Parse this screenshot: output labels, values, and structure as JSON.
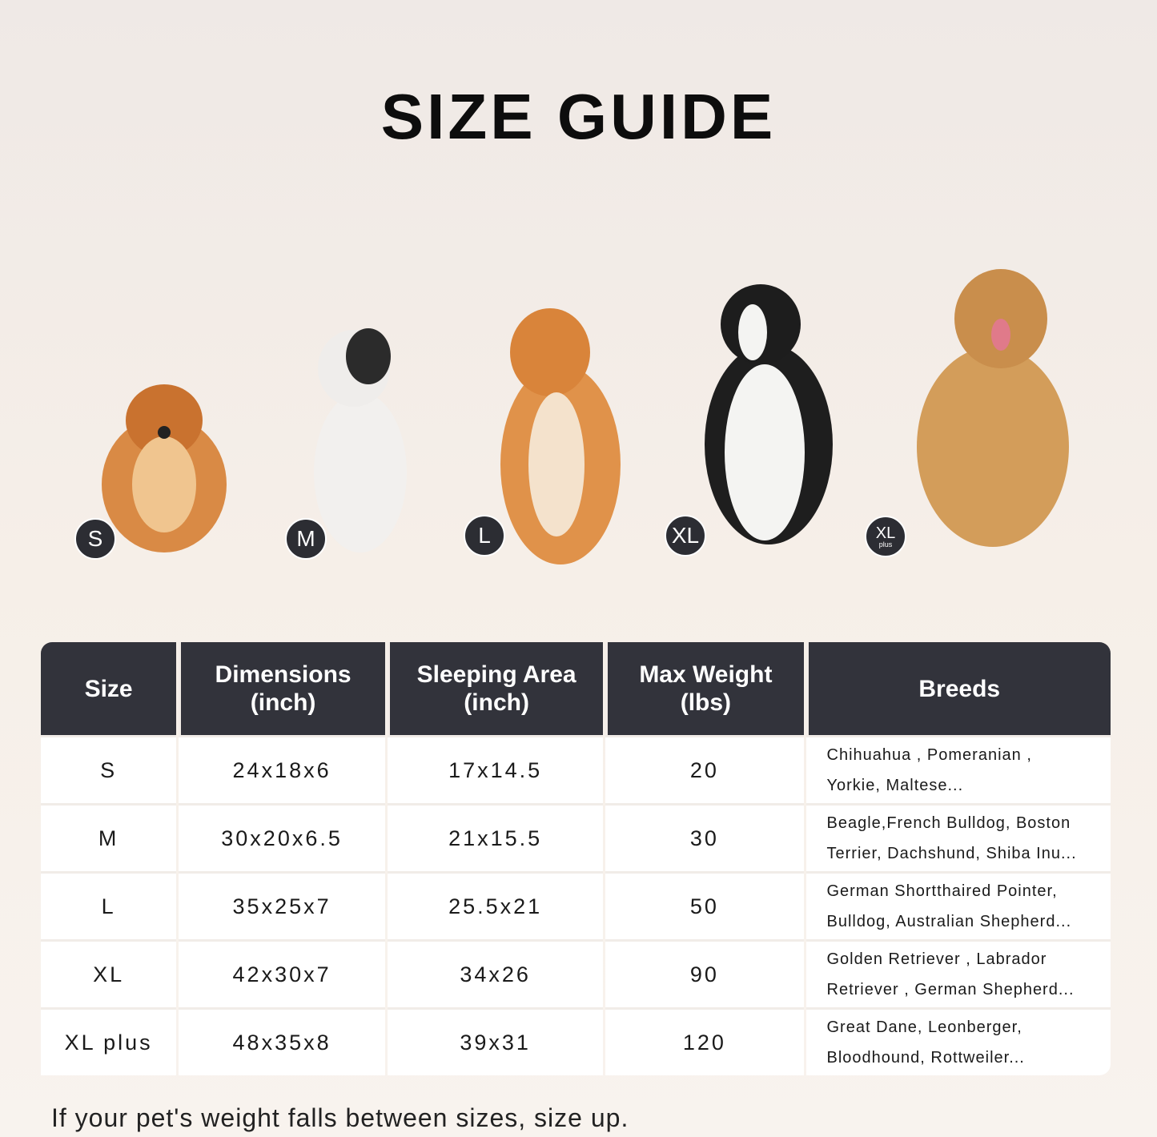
{
  "title": "SIZE GUIDE",
  "badges": [
    {
      "label": "S"
    },
    {
      "label": "M"
    },
    {
      "label": "L"
    },
    {
      "label": "XL"
    },
    {
      "label": "XL",
      "sub": "plus"
    }
  ],
  "table": {
    "headers": [
      [
        "Size",
        ""
      ],
      [
        "Dimensions",
        "(inch)"
      ],
      [
        "Sleeping Area",
        "(inch)"
      ],
      [
        "Max Weight",
        "(lbs)"
      ],
      [
        "Breeds",
        ""
      ]
    ],
    "rows": [
      {
        "size": "S",
        "dimensions": "24x18x6",
        "sleeping_area": "17x14.5",
        "max_weight": "20",
        "breeds": [
          "Chihuahua , Pomeranian ,",
          "Yorkie, Maltese..."
        ]
      },
      {
        "size": "M",
        "dimensions": "30x20x6.5",
        "sleeping_area": "21x15.5",
        "max_weight": "30",
        "breeds": [
          "Beagle,French Bulldog, Boston",
          "Terrier, Dachshund, Shiba Inu..."
        ]
      },
      {
        "size": "L",
        "dimensions": "35x25x7",
        "sleeping_area": "25.5x21",
        "max_weight": "50",
        "breeds": [
          "German Shortthaired Pointer,",
          "Bulldog, Australian Shepherd..."
        ]
      },
      {
        "size": "XL",
        "dimensions": "42x30x7",
        "sleeping_area": "34x26",
        "max_weight": "90",
        "breeds": [
          "Golden Retriever , Labrador",
          "Retriever , German Shepherd..."
        ]
      },
      {
        "size": "XL plus",
        "dimensions": "48x35x8",
        "sleeping_area": "39x31",
        "max_weight": "120",
        "breeds": [
          "Great Dane, Leonberger,",
          "Bloodhound, Rottweiler..."
        ]
      }
    ]
  },
  "note": "If your pet's weight falls between sizes, size up.",
  "colors": {
    "header": "#32333b",
    "badge": "#2c2d33"
  }
}
